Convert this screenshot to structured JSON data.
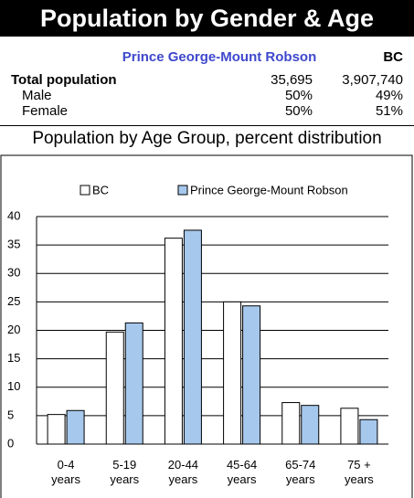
{
  "header": {
    "title": "Population by Gender & Age"
  },
  "table": {
    "columns": [
      "Prince George-Mount Robson",
      "BC"
    ],
    "rows": [
      [
        "Total population",
        "35,695",
        "3,907,740"
      ],
      [
        "Male",
        "50%",
        "49%"
      ],
      [
        "Female",
        "50%",
        "51%"
      ]
    ]
  },
  "chart_data": {
    "type": "bar",
    "title": "Population by Age Group, percent distribution",
    "categories": [
      "0-4\nyears",
      "5-19\nyears",
      "20-44\nyears",
      "45-64\nyears",
      "65-74\nyears",
      "75 +\nyears"
    ],
    "series": [
      {
        "name": "BC",
        "color": "#ffffff",
        "values": [
          5.2,
          19.7,
          36.2,
          25.0,
          7.3,
          6.3
        ]
      },
      {
        "name": "Prince George-Mount Robson",
        "color": "#a6c8ec",
        "values": [
          5.9,
          21.3,
          37.6,
          24.3,
          6.8,
          4.3
        ]
      }
    ],
    "ylim": [
      0,
      40
    ],
    "yticks": [
      0,
      5,
      10,
      15,
      20,
      25,
      30,
      35,
      40
    ],
    "grid": true,
    "legend": "top"
  }
}
